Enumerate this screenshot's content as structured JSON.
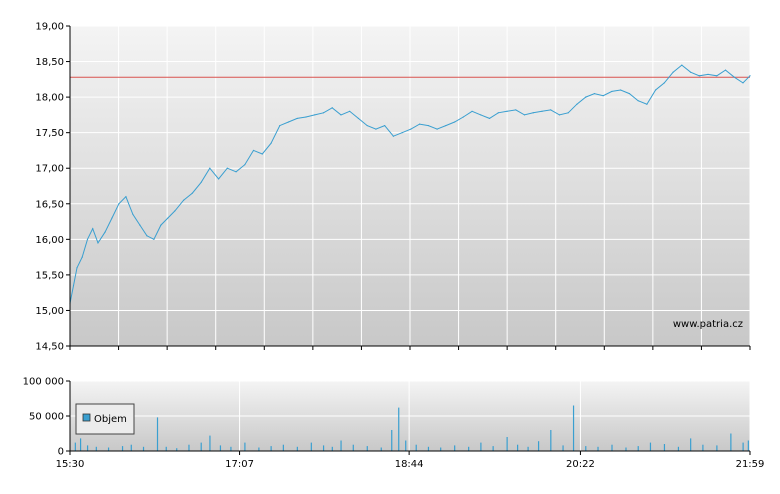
{
  "watermark": "www.patria.cz",
  "colors": {
    "price_line": "#3a9fd0",
    "reference_line": "#d9534f",
    "volume_bar": "#3a9fd0",
    "grid": "#ffffff",
    "plot_bg_top": "#f4f4f4",
    "plot_bg_bottom": "#c8c8c8",
    "axis": "#000000"
  },
  "chart_data": [
    {
      "type": "line",
      "title": "",
      "xlabel": "",
      "ylabel": "",
      "ylim": [
        14.5,
        19.0
      ],
      "y_ticks": [
        "19,00",
        "18,50",
        "18,00",
        "17,50",
        "17,00",
        "16,50",
        "16,00",
        "15,50",
        "15,00",
        "14,50"
      ],
      "y_tick_values": [
        19.0,
        18.5,
        18.0,
        17.5,
        17.0,
        16.5,
        16.0,
        15.5,
        15.0,
        14.5
      ],
      "x_range": [
        "15:30",
        "21:59"
      ],
      "reference_line": 18.28,
      "grid": true,
      "series": [
        {
          "x": [
            "15:30",
            "15:32",
            "15:34",
            "15:37",
            "15:40",
            "15:43",
            "15:46",
            "15:50",
            "15:54",
            "15:58",
            "16:02",
            "16:06",
            "16:10",
            "16:14",
            "16:18",
            "16:22",
            "16:26",
            "16:30",
            "16:35",
            "16:40",
            "16:45",
            "16:50",
            "16:55",
            "17:00",
            "17:05",
            "17:10",
            "17:15",
            "17:20",
            "17:25",
            "17:30",
            "17:35",
            "17:40",
            "17:45",
            "17:50",
            "17:55",
            "18:00",
            "18:05",
            "18:10",
            "18:15",
            "18:20",
            "18:25",
            "18:30",
            "18:35",
            "18:40",
            "18:45",
            "18:50",
            "18:55",
            "19:00",
            "19:05",
            "19:10",
            "19:15",
            "19:20",
            "19:25",
            "19:30",
            "19:35",
            "19:40",
            "19:45",
            "19:50",
            "19:55",
            "20:00",
            "20:05",
            "20:10",
            "20:15",
            "20:20",
            "20:25",
            "20:30",
            "20:35",
            "20:40",
            "20:45",
            "20:50",
            "20:55",
            "21:00",
            "21:05",
            "21:10",
            "21:15",
            "21:20",
            "21:25",
            "21:30",
            "21:35",
            "21:40",
            "21:45",
            "21:50",
            "21:55",
            "21:59"
          ],
          "y": [
            15.1,
            15.35,
            15.6,
            15.75,
            16.0,
            16.15,
            15.95,
            16.1,
            16.3,
            16.5,
            16.6,
            16.35,
            16.2,
            16.05,
            16.0,
            16.2,
            16.3,
            16.4,
            16.55,
            16.65,
            16.8,
            17.0,
            16.85,
            17.0,
            16.95,
            17.05,
            17.25,
            17.2,
            17.35,
            17.6,
            17.65,
            17.7,
            17.72,
            17.75,
            17.78,
            17.85,
            17.75,
            17.8,
            17.7,
            17.6,
            17.55,
            17.6,
            17.45,
            17.5,
            17.55,
            17.62,
            17.6,
            17.55,
            17.6,
            17.65,
            17.72,
            17.8,
            17.75,
            17.7,
            17.78,
            17.8,
            17.82,
            17.75,
            17.78,
            17.8,
            17.82,
            17.75,
            17.78,
            17.9,
            18.0,
            18.05,
            18.02,
            18.08,
            18.1,
            18.05,
            17.95,
            17.9,
            18.1,
            18.2,
            18.35,
            18.45,
            18.35,
            18.3,
            18.32,
            18.3,
            18.38,
            18.28,
            18.2,
            18.3
          ]
        }
      ]
    },
    {
      "type": "bar",
      "title": "",
      "xlabel": "",
      "ylabel": "",
      "ylim": [
        0,
        100000
      ],
      "y_ticks": [
        "100 000",
        "50 000",
        "0"
      ],
      "y_tick_values": [
        100000,
        50000,
        0
      ],
      "x_ticks": [
        "15:30",
        "17:07",
        "18:44",
        "20:22",
        "21:59"
      ],
      "x_range": [
        "15:30",
        "21:59"
      ],
      "legend": "top-left",
      "grid": true,
      "series": [
        {
          "name": "Objem",
          "x": [
            "15:33",
            "15:36",
            "15:40",
            "15:45",
            "15:52",
            "16:00",
            "16:05",
            "16:12",
            "16:20",
            "16:25",
            "16:31",
            "16:38",
            "16:45",
            "16:50",
            "16:56",
            "17:02",
            "17:10",
            "17:18",
            "17:25",
            "17:32",
            "17:40",
            "17:48",
            "17:55",
            "18:00",
            "18:05",
            "18:12",
            "18:20",
            "18:28",
            "18:34",
            "18:38",
            "18:42",
            "18:48",
            "18:55",
            "19:02",
            "19:10",
            "19:18",
            "19:25",
            "19:32",
            "19:40",
            "19:46",
            "19:52",
            "19:58",
            "20:05",
            "20:12",
            "20:18",
            "20:25",
            "20:32",
            "20:40",
            "20:48",
            "20:55",
            "21:02",
            "21:10",
            "21:18",
            "21:25",
            "21:32",
            "21:40",
            "21:48",
            "21:55",
            "21:58"
          ],
          "values": [
            12000,
            18000,
            8000,
            6000,
            5000,
            7000,
            9000,
            6000,
            48000,
            6000,
            4000,
            9000,
            12000,
            22000,
            8000,
            6000,
            12000,
            5000,
            7000,
            9000,
            6000,
            12000,
            8000,
            6000,
            15000,
            9000,
            7000,
            5000,
            30000,
            62000,
            15000,
            9000,
            6000,
            5000,
            8000,
            6000,
            12000,
            7000,
            20000,
            9000,
            6000,
            14000,
            30000,
            8000,
            65000,
            7000,
            6000,
            9000,
            5000,
            7000,
            12000,
            10000,
            6000,
            18000,
            9000,
            8000,
            25000,
            12000,
            15000
          ]
        }
      ]
    }
  ]
}
